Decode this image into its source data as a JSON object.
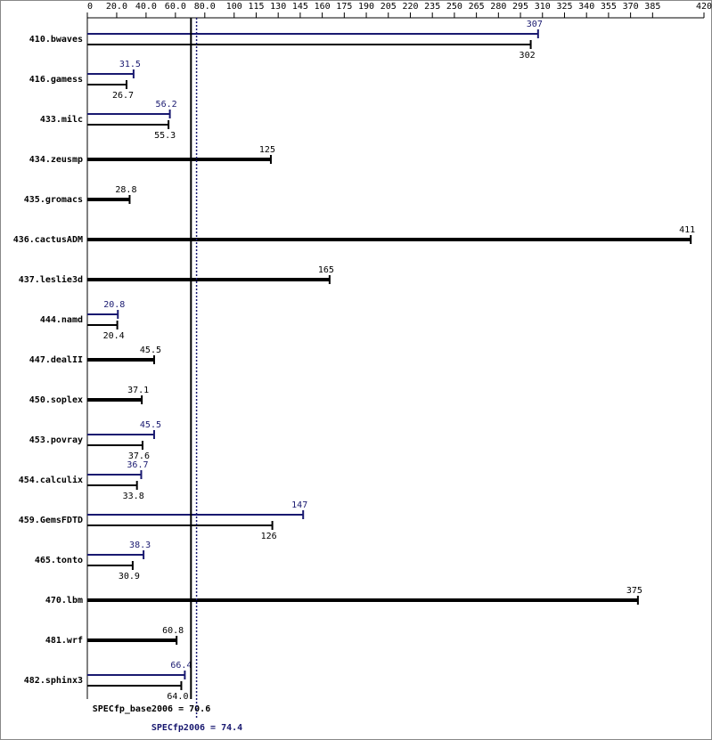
{
  "chart_data": {
    "type": "bar",
    "orientation": "horizontal",
    "categories": [
      "410.bwaves",
      "416.gamess",
      "433.milc",
      "434.zeusmp",
      "435.gromacs",
      "436.cactusADM",
      "437.leslie3d",
      "444.namd",
      "447.dealII",
      "450.soplex",
      "453.povray",
      "454.calculix",
      "459.GemsFDTD",
      "465.tonto",
      "470.lbm",
      "481.wrf",
      "482.sphinx3"
    ],
    "series": [
      {
        "color": "#191970",
        "values": [
          307,
          31.5,
          56.2,
          null,
          null,
          null,
          null,
          20.8,
          null,
          null,
          45.5,
          36.7,
          147,
          38.3,
          null,
          null,
          66.4
        ]
      },
      {
        "color": "#000000",
        "values": [
          302,
          26.7,
          55.3,
          125,
          28.8,
          411,
          165,
          20.4,
          45.5,
          37.1,
          37.6,
          33.8,
          126,
          30.9,
          375,
          60.8,
          64.0
        ],
        "value_labels": [
          "302",
          "26.7",
          "55.3",
          "125",
          "28.8",
          "411",
          "165",
          "20.4",
          "45.5",
          "37.1",
          "37.6",
          "33.8",
          "126",
          "30.9",
          "375",
          "60.8",
          "64.0"
        ]
      }
    ],
    "xlim": [
      0,
      420
    ],
    "xticks": [
      0,
      {
        "value": 20,
        "label": "20.0"
      },
      {
        "value": 40,
        "label": "40.0"
      },
      {
        "value": 60,
        "label": "60.0"
      },
      {
        "value": 80,
        "label": "80.0"
      },
      100,
      115,
      130,
      145,
      160,
      175,
      190,
      205,
      220,
      235,
      250,
      265,
      280,
      295,
      310,
      325,
      340,
      355,
      370,
      385,
      420
    ],
    "reference_lines": [
      {
        "label": "SPECfp_base2006 =",
        "value": 70.6,
        "color": "#000000",
        "style": "solid"
      },
      {
        "label": "SPECfp2006 =",
        "value": 74.4,
        "color": "#191970",
        "style": "dotted"
      }
    ]
  }
}
